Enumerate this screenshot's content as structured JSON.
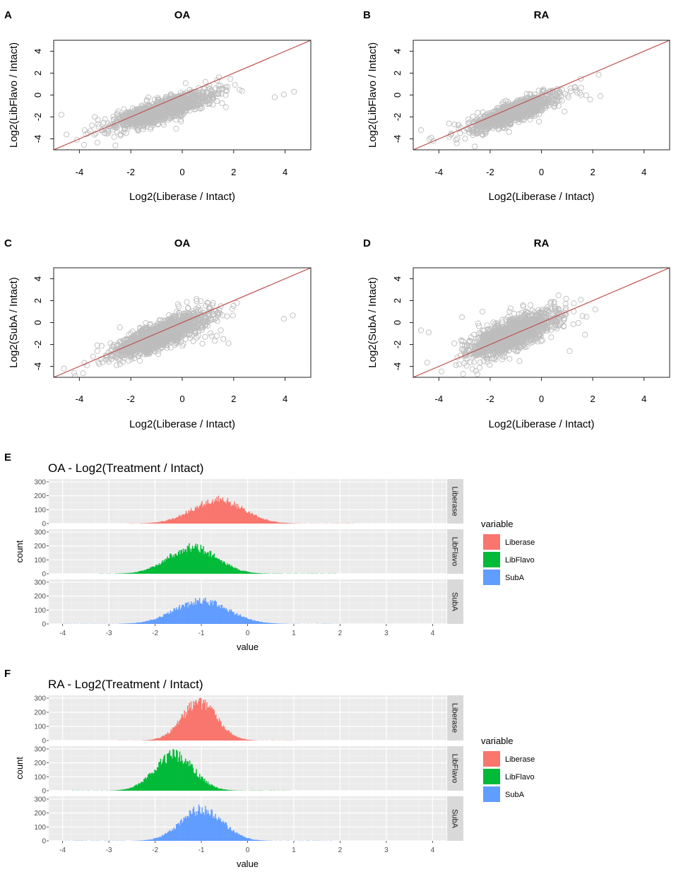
{
  "chart_data": [
    {
      "panel": "A",
      "type": "scatter",
      "title": "OA",
      "xlabel": "Log2(Liberase / Intact)",
      "ylabel": "Log2(LibFlavo / Intact)",
      "xlim": [
        -5,
        5
      ],
      "ylim": [
        -5,
        5
      ],
      "xticks": [
        -4,
        -2,
        0,
        2,
        4
      ],
      "yticks": [
        -4,
        -2,
        0,
        2,
        4
      ],
      "identity_line": true,
      "cloud": {
        "cx": -0.8,
        "cy": -1.4,
        "sx": 0.85,
        "sy": 0.75,
        "r": 0.82,
        "n": 1500
      },
      "outliers": [
        [
          3.95,
          0.05
        ],
        [
          4.35,
          0.3
        ],
        [
          1.7,
          -1.1
        ],
        [
          1.55,
          -0.75
        ],
        [
          -4.7,
          -1.8
        ],
        [
          -4.5,
          -3.6
        ],
        [
          -4.1,
          -4.1
        ],
        [
          -3.4,
          -2.0
        ],
        [
          -3.0,
          -2.2
        ],
        [
          1.3,
          0.6
        ],
        [
          0.9,
          1.2
        ],
        [
          -2.6,
          -4.6
        ]
      ]
    },
    {
      "panel": "B",
      "type": "scatter",
      "title": "RA",
      "xlabel": "Log2(Liberase / Intact)",
      "ylabel": "Log2(LibFlavo / Intact)",
      "xlim": [
        -5,
        5
      ],
      "ylim": [
        -5,
        5
      ],
      "xticks": [
        -4,
        -2,
        0,
        2,
        4
      ],
      "yticks": [
        -4,
        -2,
        0,
        2,
        4
      ],
      "identity_line": true,
      "cloud": {
        "cx": -1.1,
        "cy": -1.6,
        "sx": 0.75,
        "sy": 0.75,
        "r": 0.85,
        "n": 1500
      },
      "outliers": [
        [
          1.55,
          0.0
        ],
        [
          2.3,
          -0.1
        ],
        [
          1.9,
          -0.4
        ],
        [
          1.3,
          0.75
        ],
        [
          1.55,
          0.65
        ],
        [
          -4.7,
          -3.2
        ],
        [
          -4.3,
          -3.9
        ],
        [
          -3.3,
          -4.4
        ],
        [
          -2.6,
          -4.7
        ],
        [
          -3.6,
          -2.6
        ],
        [
          0.9,
          -1.5
        ]
      ]
    },
    {
      "panel": "C",
      "type": "scatter",
      "title": "OA",
      "xlabel": "Log2(Liberase / Intact)",
      "ylabel": "Log2(SubA / Intact)",
      "xlim": [
        -5,
        5
      ],
      "ylim": [
        -5,
        5
      ],
      "xticks": [
        -4,
        -2,
        0,
        2,
        4
      ],
      "yticks": [
        -4,
        -2,
        0,
        2,
        4
      ],
      "identity_line": true,
      "cloud": {
        "cx": -0.8,
        "cy": -1.1,
        "sx": 0.85,
        "sy": 0.95,
        "r": 0.8,
        "n": 1500
      },
      "outliers": [
        [
          3.95,
          0.35
        ],
        [
          4.3,
          0.65
        ],
        [
          1.6,
          -1.5
        ],
        [
          1.8,
          -1.9
        ],
        [
          1.5,
          -0.7
        ],
        [
          -4.6,
          -4.2
        ],
        [
          -4.2,
          -4.6
        ],
        [
          -3.3,
          -2.6
        ],
        [
          1.2,
          1.8
        ],
        [
          1.5,
          1.5
        ],
        [
          -3.7,
          -3.9
        ]
      ]
    },
    {
      "panel": "D",
      "type": "scatter",
      "title": "RA",
      "xlabel": "Log2(Liberase / Intact)",
      "ylabel": "Log2(SubA / Intact)",
      "xlim": [
        -5,
        5
      ],
      "ylim": [
        -5,
        5
      ],
      "xticks": [
        -4,
        -2,
        0,
        2,
        4
      ],
      "yticks": [
        -4,
        -2,
        0,
        2,
        4
      ],
      "identity_line": true,
      "cloud": {
        "cx": -1.1,
        "cy": -1.0,
        "sx": 0.8,
        "sy": 1.0,
        "r": 0.75,
        "n": 1500
      },
      "outliers": [
        [
          -4.7,
          -0.7
        ],
        [
          -4.4,
          -0.9
        ],
        [
          -3.1,
          0.5
        ],
        [
          -2.3,
          1.0
        ],
        [
          -1.2,
          1.3
        ],
        [
          1.7,
          -1.1
        ],
        [
          1.1,
          -2.6
        ],
        [
          2.1,
          1.2
        ],
        [
          -3.4,
          -1.9
        ],
        [
          -2.5,
          -4.7
        ],
        [
          0.5,
          1.9
        ],
        [
          1.6,
          0.6
        ]
      ]
    },
    {
      "panel": "E",
      "type": "histogram",
      "title": "OA - Log2(Treatment / Intact)",
      "xlabel": "value",
      "ylabel": "count",
      "xlim": [
        -4.3,
        4.3
      ],
      "ylim": [
        0,
        320
      ],
      "xticks": [
        -4,
        -3,
        -2,
        -1,
        0,
        1,
        2,
        3,
        4
      ],
      "yticks": [
        0,
        100,
        200,
        300
      ],
      "legend_title": "variable",
      "series": [
        {
          "name": "Liberase",
          "color": "#F8766D",
          "mean": -0.65,
          "sd": 0.55,
          "peak": 170,
          "range": [
            -2.6,
            2.3
          ]
        },
        {
          "name": "LibFlavo",
          "color": "#00BA38",
          "mean": -1.2,
          "sd": 0.52,
          "peak": 190,
          "range": [
            -3.2,
            1.9
          ]
        },
        {
          "name": "SubA",
          "color": "#619CFF",
          "mean": -1.0,
          "sd": 0.58,
          "peak": 165,
          "range": [
            -4.0,
            2.0
          ]
        }
      ]
    },
    {
      "panel": "F",
      "type": "histogram",
      "title": "RA - Log2(Treatment / Intact)",
      "xlabel": "value",
      "ylabel": "count",
      "xlim": [
        -4.3,
        4.3
      ],
      "ylim": [
        0,
        320
      ],
      "xticks": [
        -4,
        -3,
        -2,
        -1,
        0,
        1,
        2,
        3,
        4
      ],
      "yticks": [
        0,
        100,
        200,
        300
      ],
      "legend_title": "variable",
      "series": [
        {
          "name": "Liberase",
          "color": "#F8766D",
          "mean": -1.05,
          "sd": 0.38,
          "peak": 270,
          "range": [
            -2.8,
            1.0
          ]
        },
        {
          "name": "LibFlavo",
          "color": "#00BA38",
          "mean": -1.6,
          "sd": 0.42,
          "peak": 255,
          "range": [
            -3.8,
            0.9
          ]
        },
        {
          "name": "SubA",
          "color": "#619CFF",
          "mean": -1.0,
          "sd": 0.45,
          "peak": 225,
          "range": [
            -4.0,
            1.8
          ]
        }
      ]
    }
  ]
}
